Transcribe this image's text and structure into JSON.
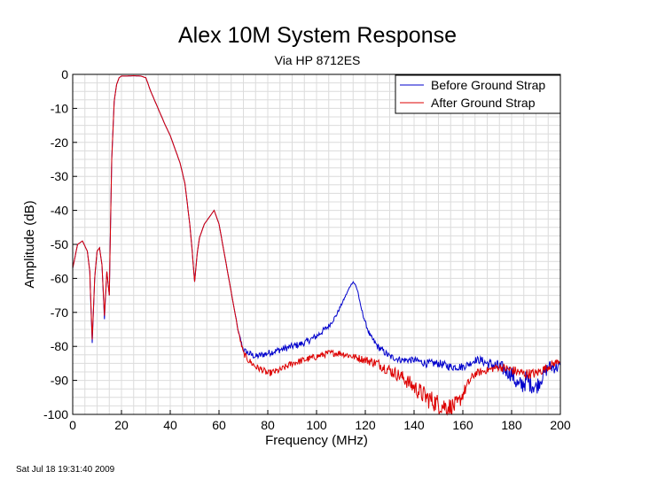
{
  "chart_data": {
    "type": "line",
    "title": "Alex 10M System Response",
    "subtitle": "Via HP 8712ES",
    "xlabel": "Frequency (MHz)",
    "ylabel": "Amplitude (dB)",
    "xlim": [
      0,
      200
    ],
    "ylim": [
      -100,
      0
    ],
    "x_ticks": [
      "0",
      "20",
      "40",
      "60",
      "80",
      "100",
      "120",
      "140",
      "160",
      "180",
      "200"
    ],
    "y_ticks": [
      "0",
      "-10",
      "-20",
      "-30",
      "-40",
      "-50",
      "-60",
      "-70",
      "-80",
      "-90",
      "-100"
    ],
    "grid": true,
    "legend_position": "top-right",
    "series": [
      {
        "name": "Before Ground Strap",
        "color": "#0000cc",
        "x": [
          0,
          2,
          4,
          6,
          7,
          8,
          9,
          10,
          11,
          12,
          13,
          14,
          15,
          16,
          17,
          18,
          19,
          20,
          22,
          25,
          28,
          30,
          32,
          35,
          38,
          40,
          42,
          44,
          46,
          48,
          49,
          50,
          51,
          52,
          54,
          56,
          58,
          60,
          62,
          64,
          66,
          68,
          70,
          72,
          75,
          80,
          85,
          90,
          95,
          100,
          105,
          108,
          110,
          112,
          114,
          115,
          116,
          117,
          118,
          120,
          122,
          125,
          130,
          135,
          140,
          145,
          150,
          155,
          160,
          163,
          165,
          167,
          170,
          175,
          180,
          183,
          186,
          190,
          195,
          200
        ],
        "y": [
          -57,
          -50,
          -49,
          -52,
          -58,
          -79,
          -60,
          -52,
          -51,
          -56,
          -72,
          -58,
          -65,
          -25,
          -8,
          -3,
          -1,
          -0.5,
          -0.5,
          -0.4,
          -0.5,
          -1,
          -5,
          -10,
          -15,
          -18,
          -22,
          -26,
          -32,
          -44,
          -52,
          -61,
          -53,
          -48,
          -44,
          -42,
          -40,
          -44,
          -52,
          -60,
          -68,
          -76,
          -81,
          -82,
          -83,
          -82,
          -81,
          -80,
          -79,
          -77,
          -74,
          -71,
          -68,
          -65,
          -62,
          -61,
          -62,
          -64,
          -68,
          -73,
          -77,
          -80,
          -83,
          -84,
          -84,
          -85,
          -85,
          -86,
          -86,
          -85,
          -84,
          -84,
          -85,
          -86,
          -88,
          -92,
          -90,
          -92,
          -86,
          -86
        ],
        "noise": [
          0,
          0,
          0,
          0,
          0,
          0,
          0,
          0,
          0,
          0,
          0,
          0,
          0,
          0,
          0,
          0,
          0,
          0,
          0,
          0,
          0,
          0,
          0,
          0,
          0,
          0,
          0,
          0,
          0,
          0,
          0,
          0,
          0,
          0,
          0,
          0,
          0,
          0,
          0,
          0,
          0,
          0.5,
          0.8,
          1.0,
          1.0,
          1.0,
          1.0,
          1.0,
          1.0,
          1.0,
          0.8,
          0.6,
          0.4,
          0.3,
          0.2,
          0.2,
          0.2,
          0.3,
          0.4,
          0.6,
          0.8,
          1.0,
          1.0,
          1.0,
          1.0,
          1.2,
          1.2,
          1.2,
          1.2,
          1.0,
          1.0,
          1.2,
          1.5,
          2.0,
          2.5,
          3.0,
          3.0,
          2.5,
          2.0,
          2.0
        ]
      },
      {
        "name": "After Ground Strap",
        "color": "#dd0000",
        "x": [
          0,
          2,
          4,
          6,
          7,
          8,
          9,
          10,
          11,
          12,
          13,
          14,
          15,
          16,
          17,
          18,
          19,
          20,
          22,
          25,
          28,
          30,
          32,
          35,
          38,
          40,
          42,
          44,
          46,
          48,
          49,
          50,
          51,
          52,
          54,
          56,
          58,
          60,
          62,
          64,
          66,
          68,
          70,
          72,
          75,
          78,
          80,
          85,
          90,
          95,
          100,
          105,
          110,
          115,
          120,
          125,
          130,
          135,
          140,
          145,
          150,
          155,
          158,
          160,
          163,
          165,
          170,
          175,
          180,
          185,
          190,
          195,
          200
        ],
        "y": [
          -57,
          -50,
          -49,
          -52,
          -58,
          -78,
          -60,
          -52,
          -51,
          -56,
          -71,
          -58,
          -65,
          -25,
          -8,
          -3,
          -1,
          -0.5,
          -0.5,
          -0.4,
          -0.5,
          -1,
          -5,
          -10,
          -15,
          -18,
          -22,
          -26,
          -32,
          -44,
          -52,
          -61,
          -53,
          -48,
          -44,
          -42,
          -40,
          -44,
          -52,
          -60,
          -68,
          -76,
          -82,
          -84,
          -86,
          -87,
          -88,
          -87,
          -85,
          -84,
          -83,
          -82,
          -82,
          -83,
          -84,
          -85,
          -87,
          -89,
          -92,
          -95,
          -97,
          -98,
          -97,
          -94,
          -90,
          -88,
          -87,
          -86,
          -87,
          -88,
          -88,
          -86,
          -84
        ],
        "noise": [
          0,
          0,
          0,
          0,
          0,
          0,
          0,
          0,
          0,
          0,
          0,
          0,
          0,
          0,
          0,
          0,
          0,
          0,
          0,
          0,
          0,
          0,
          0,
          0,
          0,
          0,
          0,
          0,
          0,
          0,
          0,
          0,
          0,
          0,
          0,
          0,
          0,
          0,
          0,
          0,
          0,
          0.5,
          0.8,
          1.0,
          1.0,
          1.0,
          1.0,
          1.0,
          1.0,
          1.0,
          1.0,
          1.0,
          1.0,
          1.0,
          1.2,
          1.5,
          1.8,
          2.0,
          2.5,
          3.0,
          3.0,
          3.0,
          2.5,
          2.0,
          1.5,
          1.2,
          1.0,
          1.2,
          1.5,
          1.5,
          1.5,
          1.2,
          1.0
        ]
      }
    ]
  },
  "footer": {
    "timestamp": "Sat Jul 18 19:31:40 2009"
  }
}
